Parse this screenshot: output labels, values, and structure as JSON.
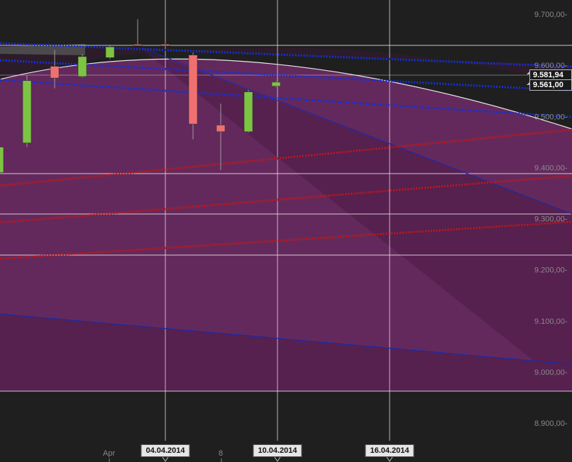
{
  "chart_data": {
    "type": "candlestick",
    "y_ticks": [
      "9.700,00-",
      "9.600,00-",
      "9.500,00-",
      "9.400,00-",
      "9.300,00-",
      "9.200,00-",
      "9.100,00-",
      "9.000,00-",
      "8.900,00-"
    ],
    "y_tick_values": [
      9700,
      9600,
      9500,
      9400,
      9300,
      9200,
      9100,
      9000,
      8900
    ],
    "ylim": [
      8855,
      9745
    ],
    "x_labels": [
      "Apr",
      "8"
    ],
    "date_markers": [
      "04.04.2014",
      "10.04.2014",
      "16.04.2014"
    ],
    "price_labels": [
      "9.581,94",
      "9.561,00"
    ],
    "price_label_values": [
      9581.94,
      9561.0
    ],
    "colors": {
      "up": "#7ec444",
      "down": "#f07070",
      "support_dotted": "#c01818",
      "resistance_dotted": "#1530d8",
      "channel_line": "#1a2aa8",
      "region_fill": "#6a2a62",
      "background": "#1f1f1f",
      "arc": "#e8e8e8",
      "grid": "#ffffff"
    },
    "candles": [
      {
        "open": 9390,
        "close": 9440,
        "high": 9450,
        "low": 9380
      },
      {
        "open": 9448,
        "close": 9570,
        "high": 9580,
        "low": 9440
      },
      {
        "open": 9598,
        "close": 9575,
        "high": 9630,
        "low": 9555
      },
      {
        "open": 9578,
        "close": 9617,
        "high": 9622,
        "low": 9576
      },
      {
        "open": 9615,
        "close": 9636,
        "high": 9640,
        "low": 9612
      },
      {
        "open": 9641,
        "close": 9639,
        "high": 9690,
        "low": 9638
      },
      {
        "open": 9641,
        "close": 9638,
        "high": 9645,
        "low": 9635
      },
      {
        "open": 9620,
        "close": 9485,
        "high": 9625,
        "low": 9455
      },
      {
        "open": 9483,
        "close": 9470,
        "high": 9525,
        "low": 9395
      },
      {
        "open": 9470,
        "close": 9548,
        "high": 9552,
        "low": 9468
      },
      {
        "open": 9559,
        "close": 9567,
        "high": 9569,
        "low": 9557
      }
    ]
  }
}
